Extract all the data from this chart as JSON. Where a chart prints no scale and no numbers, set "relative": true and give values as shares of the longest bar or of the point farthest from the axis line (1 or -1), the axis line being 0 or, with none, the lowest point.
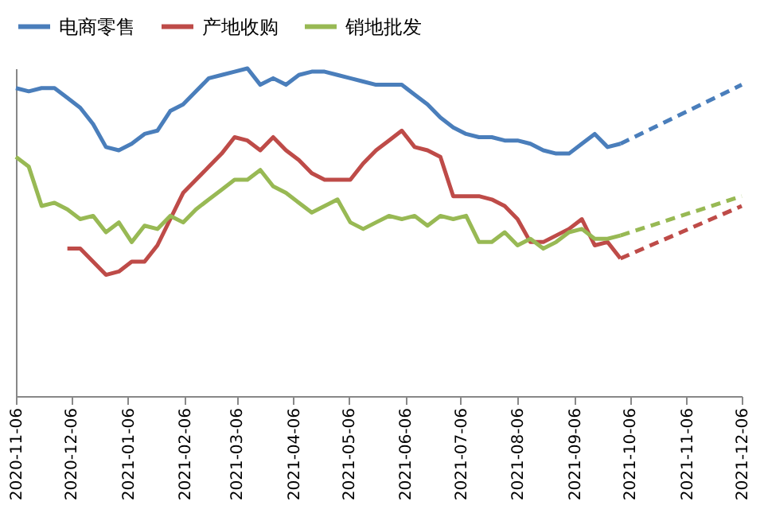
{
  "chart_data": {
    "type": "line",
    "relative": true,
    "grid": false,
    "legend": "top",
    "marker": "none",
    "xlim": [
      "2020-11-06",
      "2021-12-06"
    ],
    "xticks": [
      "2020-11-06",
      "2020-12-06",
      "2021-01-06",
      "2021-02-06",
      "2021-03-06",
      "2021-04-06",
      "2021-05-06",
      "2021-06-06",
      "2021-07-06",
      "2021-08-06",
      "2021-09-06",
      "2021-10-06",
      "2021-11-06",
      "2021-12-06"
    ],
    "x": [
      "2020-11-06",
      "2020-11-13",
      "2020-11-20",
      "2020-11-27",
      "2020-12-04",
      "2020-12-11",
      "2020-12-18",
      "2020-12-25",
      "2021-01-01",
      "2021-01-08",
      "2021-01-15",
      "2021-01-22",
      "2021-01-29",
      "2021-02-05",
      "2021-02-12",
      "2021-02-19",
      "2021-02-26",
      "2021-03-05",
      "2021-03-12",
      "2021-03-19",
      "2021-03-26",
      "2021-04-02",
      "2021-04-09",
      "2021-04-16",
      "2021-04-23",
      "2021-04-30",
      "2021-05-07",
      "2021-05-14",
      "2021-05-21",
      "2021-05-28",
      "2021-06-04",
      "2021-06-11",
      "2021-06-18",
      "2021-06-25",
      "2021-07-02",
      "2021-07-09",
      "2021-07-16",
      "2021-07-23",
      "2021-07-30",
      "2021-08-06",
      "2021-08-13",
      "2021-08-20",
      "2021-08-27",
      "2021-09-03",
      "2021-09-10",
      "2021-09-17",
      "2021-09-24",
      "2021-10-01"
    ],
    "series": [
      {
        "name": "电商零售",
        "color": "#4a7ebb",
        "line_style": "solid",
        "values": [
          0.94,
          0.93,
          0.94,
          0.94,
          0.91,
          0.88,
          0.83,
          0.76,
          0.75,
          0.77,
          0.8,
          0.81,
          0.87,
          0.89,
          0.93,
          0.97,
          0.98,
          0.99,
          1.0,
          0.95,
          0.97,
          0.95,
          0.98,
          0.99,
          0.99,
          0.98,
          0.97,
          0.96,
          0.95,
          0.95,
          0.95,
          0.92,
          0.89,
          0.85,
          0.82,
          0.8,
          0.79,
          0.79,
          0.78,
          0.78,
          0.77,
          0.75,
          0.74,
          0.74,
          0.77,
          0.8,
          0.76,
          0.77
        ]
      },
      {
        "name": "产地收购",
        "color": "#be4b48",
        "line_style": "solid",
        "values": [
          null,
          null,
          null,
          null,
          0.45,
          0.45,
          0.41,
          0.37,
          0.38,
          0.41,
          0.41,
          0.46,
          0.54,
          0.62,
          0.66,
          0.7,
          0.74,
          0.79,
          0.78,
          0.75,
          0.79,
          0.75,
          0.72,
          0.68,
          0.66,
          0.66,
          0.66,
          0.71,
          0.75,
          0.78,
          0.81,
          0.76,
          0.75,
          0.73,
          0.61,
          0.61,
          0.61,
          0.6,
          0.58,
          0.54,
          0.47,
          0.47,
          0.49,
          0.51,
          0.54,
          0.46,
          0.47,
          0.42
        ]
      },
      {
        "name": "销地批发",
        "color": "#98b954",
        "line_style": "solid",
        "values": [
          0.73,
          0.7,
          0.58,
          0.59,
          0.57,
          0.54,
          0.55,
          0.5,
          0.53,
          0.47,
          0.52,
          0.51,
          0.55,
          0.53,
          0.57,
          0.6,
          0.63,
          0.66,
          0.66,
          0.69,
          0.64,
          0.62,
          0.59,
          0.56,
          0.58,
          0.6,
          0.53,
          0.51,
          0.53,
          0.55,
          0.54,
          0.55,
          0.52,
          0.55,
          0.54,
          0.55,
          0.47,
          0.47,
          0.5,
          0.46,
          0.48,
          0.45,
          0.47,
          0.5,
          0.51,
          0.48,
          0.48,
          0.49
        ]
      },
      {
        "color": "#4a7ebb",
        "line_style": "dashed",
        "x": [
          "2021-10-01",
          "2021-12-06"
        ],
        "values": [
          0.77,
          0.95
        ]
      },
      {
        "color": "#be4b48",
        "line_style": "dashed",
        "x": [
          "2021-10-01",
          "2021-12-06"
        ],
        "values": [
          0.42,
          0.58
        ]
      },
      {
        "color": "#98b954",
        "line_style": "dashed",
        "x": [
          "2021-10-01",
          "2021-12-06"
        ],
        "values": [
          0.49,
          0.61
        ]
      }
    ]
  }
}
